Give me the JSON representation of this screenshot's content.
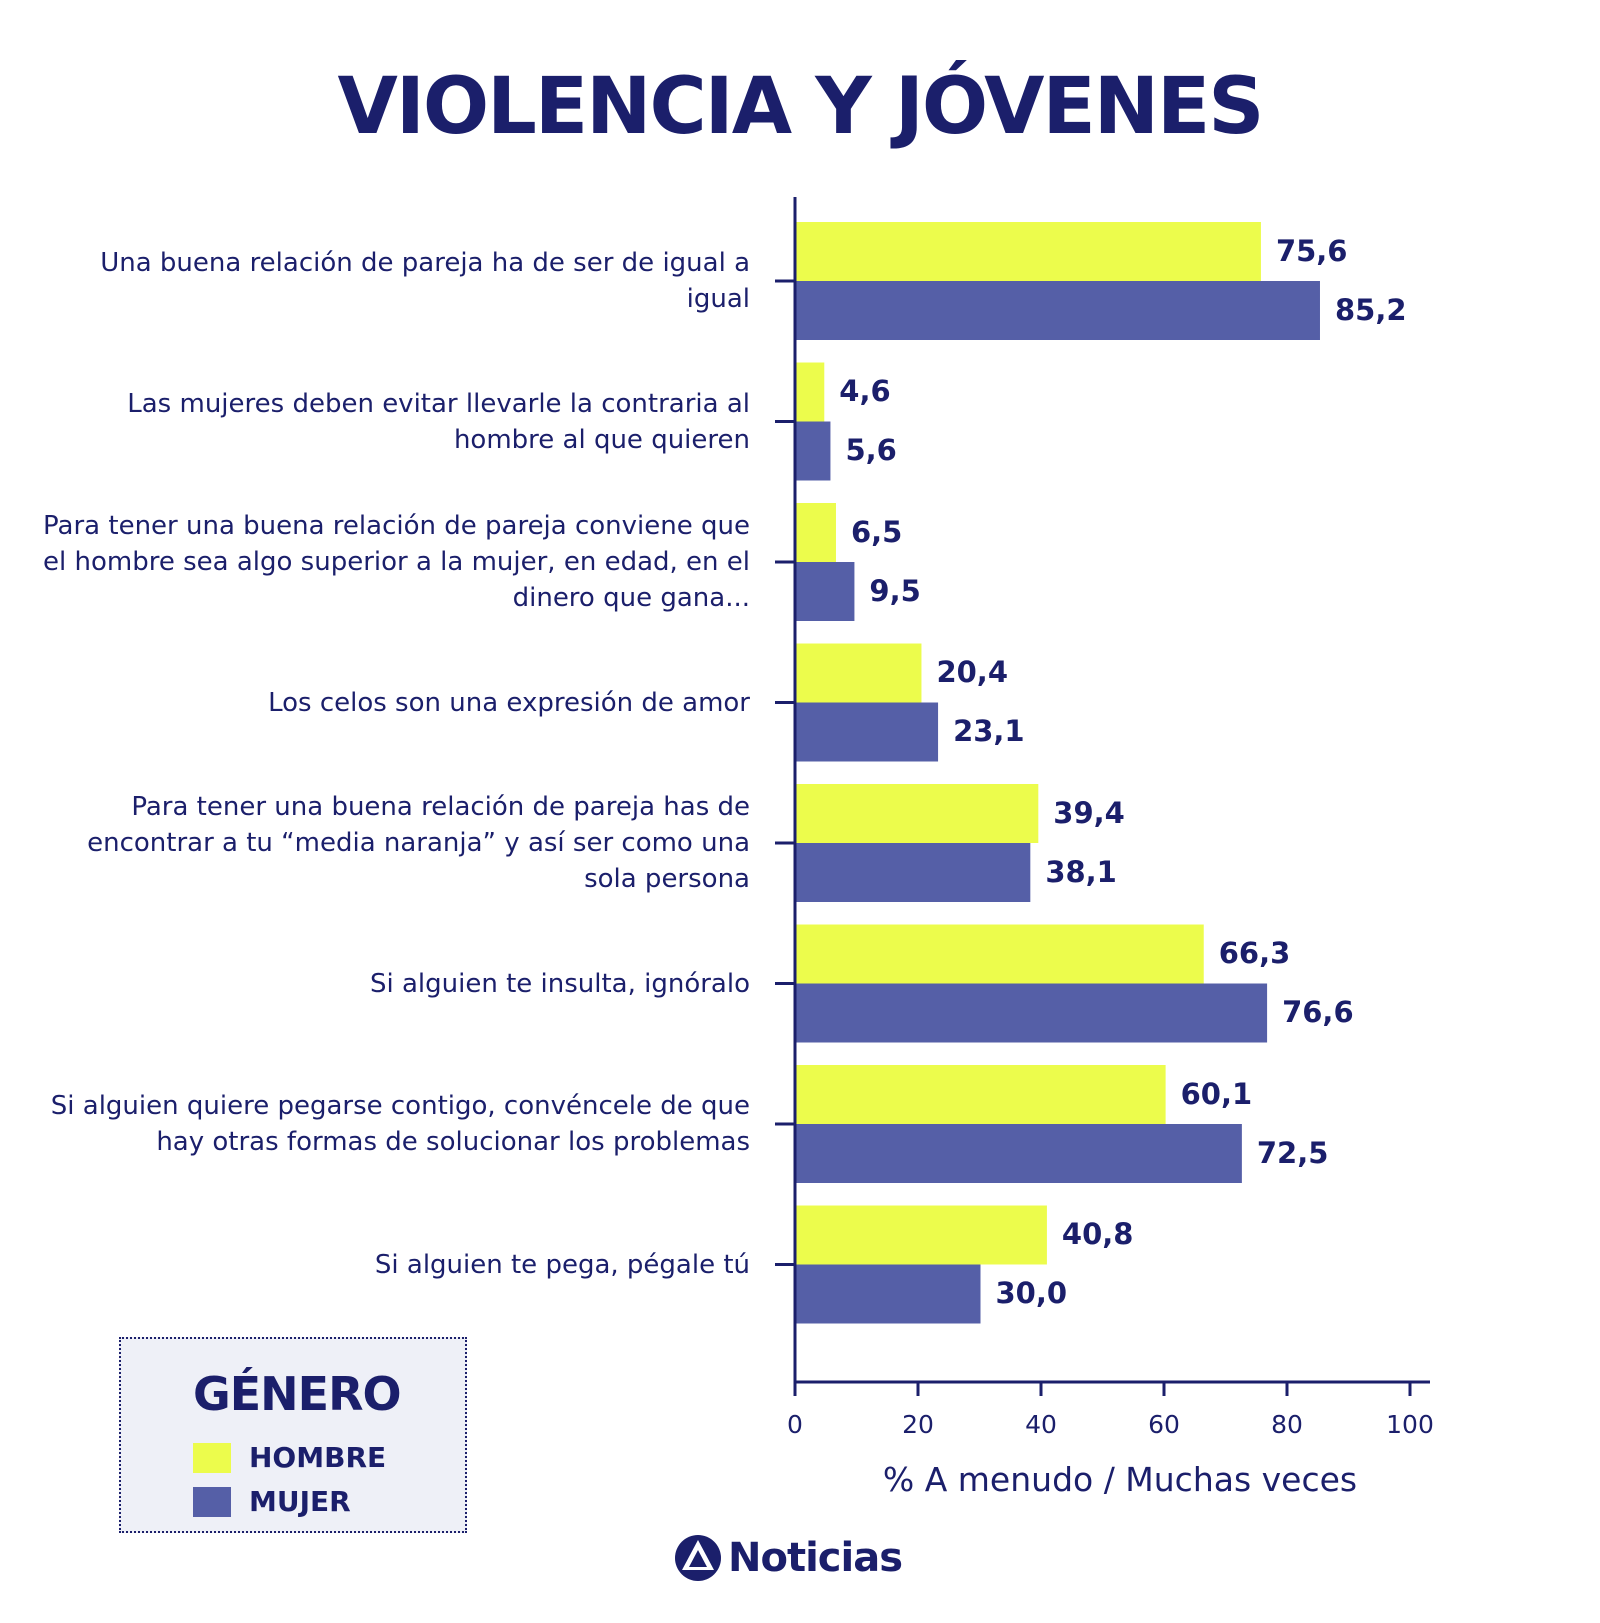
{
  "title": "VIOLENCIA Y JÓVENES",
  "colors": {
    "hombre": "#ecfc4c",
    "mujer": "#555fa7",
    "text": "#1b1f6b"
  },
  "chart_data": {
    "type": "bar",
    "orientation": "horizontal",
    "categories": [
      "Una buena relación de pareja ha de ser de igual a igual",
      "Las mujeres deben evitar llevarle la contraria al hombre al que quieren",
      "Para tener una buena relación de pareja conviene que el hombre sea algo superior a la mujer, en edad, en el dinero que gana...",
      "Los celos son una expresión de amor",
      "Para tener una buena relación de pareja has de encontrar a tu “media naranja” y así ser como una sola persona",
      "Si alguien te insulta, ignóralo",
      "Si alguien quiere pegarse contigo, convéncele de que hay otras formas de solucionar los problemas",
      "Si alguien te pega, pégale tú"
    ],
    "series": [
      {
        "name": "HOMBRE",
        "values": [
          75.6,
          4.6,
          6.5,
          20.4,
          39.4,
          66.3,
          60.1,
          40.8
        ],
        "labels": [
          "75,6",
          "4,6",
          "6,5",
          "20,4",
          "39,4",
          "66,3",
          "60,1",
          "40,8"
        ]
      },
      {
        "name": "MUJER",
        "values": [
          85.2,
          5.6,
          9.5,
          23.1,
          38.1,
          76.6,
          72.5,
          30.0
        ],
        "labels": [
          "85,2",
          "5,6",
          "9,5",
          "23,1",
          "38,1",
          "76,6",
          "72,5",
          "30,0"
        ]
      }
    ],
    "xlim": [
      0,
      100
    ],
    "xticks": [
      "0",
      "20",
      "40",
      "60",
      "80",
      "100"
    ],
    "xlabel": "% A menudo / Muchas veces",
    "legend": {
      "title": "GÉNERO",
      "placement": "bottom-left"
    }
  },
  "legend": {
    "title": "GÉNERO",
    "items": [
      "HOMBRE",
      "MUJER"
    ]
  },
  "brand": {
    "name": "Noticias"
  }
}
